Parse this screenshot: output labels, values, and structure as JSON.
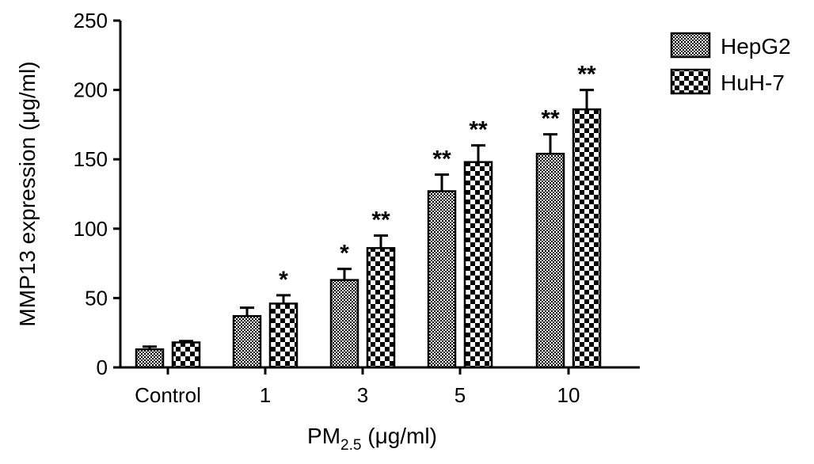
{
  "chart_data": {
    "type": "bar",
    "title": "",
    "categories": [
      "Control",
      "1",
      "3",
      "5",
      "10"
    ],
    "xlabel": {
      "main": "PM",
      "sub": "2.5",
      "unit": " (μg/ml)"
    },
    "ylabel": "MMP13 expression (μg/ml)",
    "ylim": [
      0,
      250
    ],
    "yticks": [
      "0",
      "50",
      "100",
      "150",
      "200",
      "250"
    ],
    "grid": false,
    "legend_position": "top-right",
    "series": [
      {
        "name": "HepG2",
        "pattern": "fine-checker",
        "values": [
          13,
          37,
          63,
          127,
          154
        ],
        "errors": [
          2,
          6,
          8,
          12,
          14
        ],
        "significance": [
          "",
          "",
          "*",
          "**",
          "**"
        ]
      },
      {
        "name": "HuH-7",
        "pattern": "coarse-checker",
        "values": [
          18,
          46,
          86,
          148,
          186
        ],
        "errors": [
          1,
          6,
          9,
          12,
          14
        ],
        "significance": [
          "",
          "*",
          "**",
          "**",
          "**"
        ]
      }
    ],
    "colors": {
      "bar_fill": "#000000",
      "bar_background": "#ffffff",
      "axis": "#000000"
    }
  }
}
